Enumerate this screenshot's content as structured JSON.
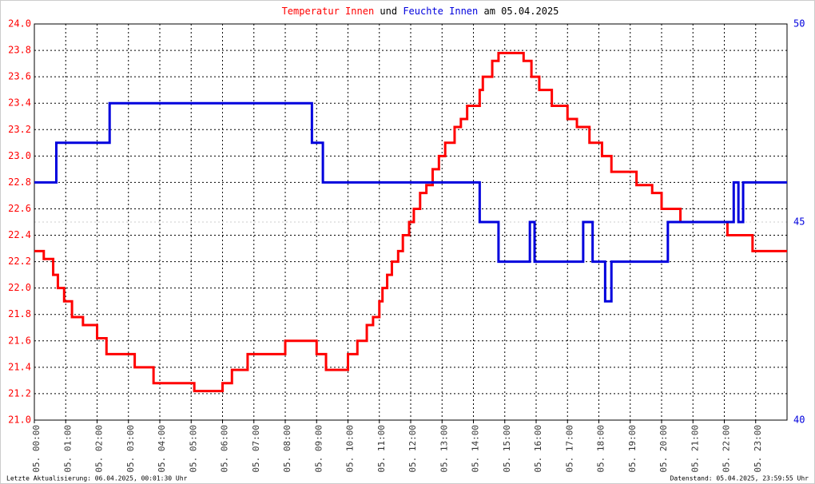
{
  "chart_data": {
    "type": "line",
    "title_parts": [
      "und",
      "am 05.04.2025"
    ],
    "footer_left": "Letzte Aktualisierung: 06.04.2025, 00:01:30 Uhr",
    "footer_right": "Datenstand: 05.04.2025, 23:59:55 Uhr",
    "step": true,
    "grid": true,
    "xlim": [
      0,
      24
    ],
    "xticks": [
      {
        "value": 0,
        "label": "05. 00:00"
      },
      {
        "value": 1,
        "label": "05. 01:00"
      },
      {
        "value": 2,
        "label": "05. 02:00"
      },
      {
        "value": 3,
        "label": "05. 03:00"
      },
      {
        "value": 4,
        "label": "05. 04:00"
      },
      {
        "value": 5,
        "label": "05. 05:00"
      },
      {
        "value": 6,
        "label": "05. 06:00"
      },
      {
        "value": 7,
        "label": "05. 07:00"
      },
      {
        "value": 8,
        "label": "05. 08:00"
      },
      {
        "value": 9,
        "label": "05. 09:00"
      },
      {
        "value": 10,
        "label": "05. 10:00"
      },
      {
        "value": 11,
        "label": "05. 11:00"
      },
      {
        "value": 12,
        "label": "05. 12:00"
      },
      {
        "value": 13,
        "label": "05. 13:00"
      },
      {
        "value": 14,
        "label": "05. 14:00"
      },
      {
        "value": 15,
        "label": "05. 15:00"
      },
      {
        "value": 16,
        "label": "05. 16:00"
      },
      {
        "value": 17,
        "label": "05. 17:00"
      },
      {
        "value": 18,
        "label": "05. 18:00"
      },
      {
        "value": 19,
        "label": "05. 19:00"
      },
      {
        "value": 20,
        "label": "05. 20:00"
      },
      {
        "value": 21,
        "label": "05. 21:00"
      },
      {
        "value": 22,
        "label": "05. 22:00"
      },
      {
        "value": 23,
        "label": "05. 23:00"
      }
    ],
    "ylim": [
      21.0,
      24.0
    ],
    "yticks": [
      {
        "value": 21.0,
        "label": "21.0"
      },
      {
        "value": 21.2,
        "label": "21.2"
      },
      {
        "value": 21.4,
        "label": "21.4"
      },
      {
        "value": 21.6,
        "label": "21.6"
      },
      {
        "value": 21.8,
        "label": "21.8"
      },
      {
        "value": 22.0,
        "label": "22.0"
      },
      {
        "value": 22.2,
        "label": "22.2"
      },
      {
        "value": 22.4,
        "label": "22.4"
      },
      {
        "value": 22.6,
        "label": "22.6"
      },
      {
        "value": 22.8,
        "label": "22.8"
      },
      {
        "value": 23.0,
        "label": "23.0"
      },
      {
        "value": 23.2,
        "label": "23.2"
      },
      {
        "value": 23.4,
        "label": "23.4"
      },
      {
        "value": 23.6,
        "label": "23.6"
      },
      {
        "value": 23.8,
        "label": "23.8"
      },
      {
        "value": 24.0,
        "label": "24.0"
      }
    ],
    "y2lim": [
      40,
      50
    ],
    "y2ticks": [
      40,
      45,
      50
    ],
    "series": [
      {
        "name": "Temperatur Innen",
        "color": "#ff0000",
        "x": [
          0,
          0.3,
          0.6,
          0.75,
          0.95,
          1.2,
          1.55,
          2.0,
          2.3,
          3.2,
          3.8,
          5.1,
          6.0,
          6.3,
          6.8,
          8.0,
          9.0,
          9.3,
          10.0,
          10.3,
          10.6,
          10.8,
          11.0,
          11.1,
          11.25,
          11.4,
          11.6,
          11.75,
          11.95,
          12.1,
          12.3,
          12.5,
          12.7,
          12.9,
          13.1,
          13.4,
          13.6,
          13.8,
          14.2,
          14.3,
          14.6,
          14.8,
          15.6,
          15.85,
          16.1,
          16.5,
          17.0,
          17.3,
          17.7,
          18.1,
          18.4,
          19.2,
          19.7,
          20.0,
          20.6,
          22.1,
          22.9,
          24.0
        ],
        "values": [
          22.28,
          22.22,
          22.1,
          22.0,
          21.9,
          21.78,
          21.72,
          21.62,
          21.5,
          21.4,
          21.28,
          21.22,
          21.28,
          21.38,
          21.5,
          21.6,
          21.5,
          21.38,
          21.5,
          21.6,
          21.72,
          21.78,
          21.9,
          22.0,
          22.1,
          22.2,
          22.28,
          22.4,
          22.5,
          22.6,
          22.72,
          22.78,
          22.9,
          23.0,
          23.1,
          23.22,
          23.28,
          23.38,
          23.5,
          23.6,
          23.72,
          23.78,
          23.72,
          23.6,
          23.5,
          23.38,
          23.28,
          23.22,
          23.1,
          23.0,
          22.88,
          22.78,
          22.72,
          22.6,
          22.5,
          22.4,
          22.28,
          22.28
        ]
      },
      {
        "name": "Feuchte Innen",
        "color": "#0000dd",
        "axis": "y2",
        "x": [
          0,
          0.7,
          2.4,
          8.85,
          9.2,
          14.2,
          14.8,
          15.8,
          15.95,
          17.5,
          17.8,
          18.2,
          18.4,
          20.2,
          22.3,
          22.45,
          22.6,
          24.0
        ],
        "values": [
          46,
          47,
          48,
          47,
          46,
          45,
          44,
          45,
          44,
          45,
          44,
          43,
          44,
          45,
          46,
          45,
          46,
          46
        ]
      }
    ]
  }
}
